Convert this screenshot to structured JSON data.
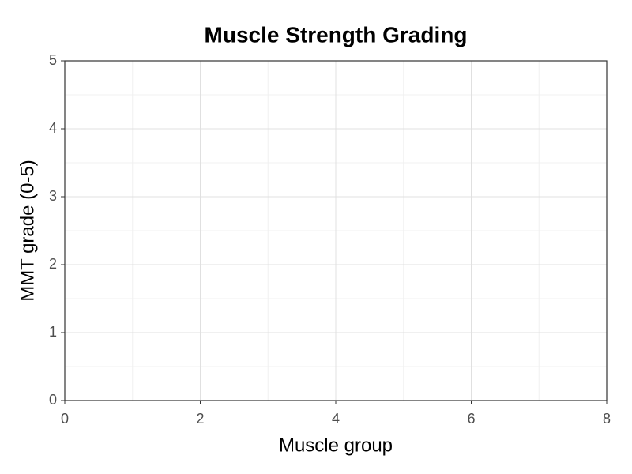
{
  "chart_data": {
    "type": "scatter",
    "title": "Muscle Strength Grading",
    "x_label": "Muscle group",
    "y_label": "MMT grade (0-5)",
    "xlim": [
      0,
      8
    ],
    "xticks": [
      0,
      2,
      4,
      6,
      8
    ],
    "ylim": [
      0,
      5
    ],
    "yticks": [
      0,
      1,
      2,
      3,
      4,
      5
    ],
    "grid": true
  }
}
